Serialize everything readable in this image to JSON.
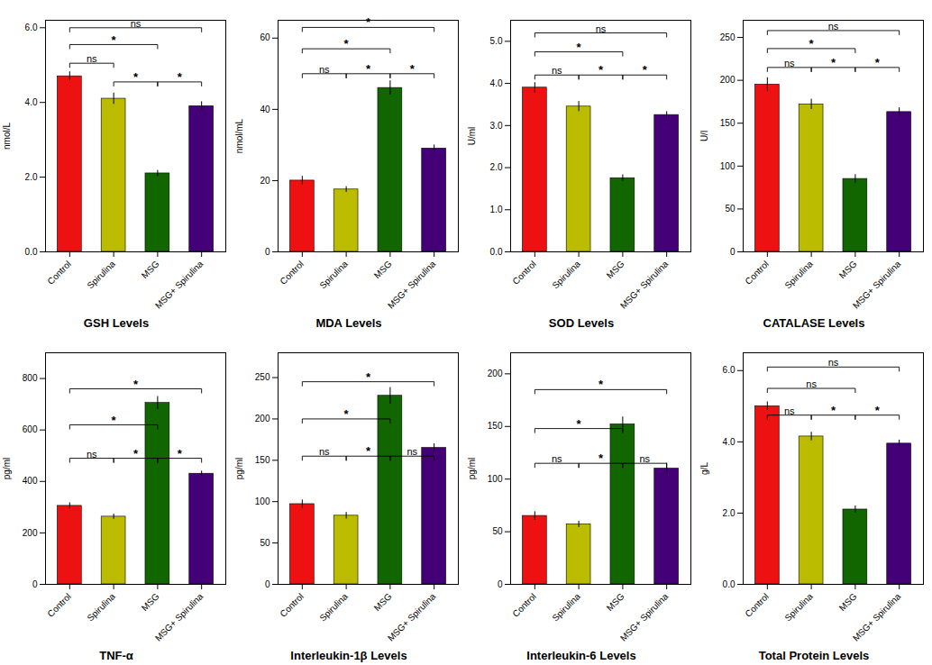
{
  "chart_data": [
    {
      "type": "bar",
      "xlabel": "GSH Levels",
      "ylabel": "nmol/L",
      "categories": [
        "Control",
        "Spirulina",
        "MSG",
        "MSG+ Spirulina"
      ],
      "values": [
        4.7,
        4.1,
        2.1,
        3.9
      ],
      "errors": [
        0.12,
        0.15,
        0.08,
        0.12
      ],
      "colors": [
        "#ee1111",
        "#bbbb00",
        "#116600",
        "#440077"
      ],
      "ylim": [
        0,
        6.2
      ],
      "yticks": [
        0,
        2,
        4,
        6
      ],
      "annotations": [
        {
          "text": "ns",
          "x1": "Control",
          "x2": "Spirulina",
          "y": 5.05
        },
        {
          "text": "*",
          "x1": "Spirulina",
          "x2": "MSG",
          "y": 4.55
        },
        {
          "text": "*",
          "x1": "MSG",
          "x2": "MSG+ Spirulina",
          "y": 4.55
        },
        {
          "text": "*",
          "x1": "Control",
          "x2": "MSG",
          "y": 5.55
        },
        {
          "text": "ns",
          "x1": "Control",
          "x2": "MSG+ Spirulina",
          "y": 6.0
        }
      ]
    },
    {
      "type": "bar",
      "xlabel": "MDA Levels",
      "ylabel": "nmol/mL",
      "categories": [
        "Control",
        "Spirulina",
        "MSG",
        "MSG+ Spirulina"
      ],
      "values": [
        20,
        17.5,
        46,
        29
      ],
      "errors": [
        1.2,
        0.8,
        2.0,
        1.0
      ],
      "colors": [
        "#ee1111",
        "#bbbb00",
        "#116600",
        "#440077"
      ],
      "ylim": [
        0,
        65
      ],
      "yticks": [
        0,
        20,
        40,
        60
      ],
      "annotations": [
        {
          "text": "ns",
          "x1": "Control",
          "x2": "Spirulina",
          "y": 50
        },
        {
          "text": "*",
          "x1": "Spirulina",
          "x2": "MSG",
          "y": 50
        },
        {
          "text": "*",
          "x1": "MSG",
          "x2": "MSG+ Spirulina",
          "y": 50
        },
        {
          "text": "*",
          "x1": "Control",
          "x2": "MSG",
          "y": 57
        },
        {
          "text": "*",
          "x1": "Control",
          "x2": "MSG+ Spirulina",
          "y": 63
        }
      ]
    },
    {
      "type": "bar",
      "xlabel": "SOD Levels",
      "ylabel": "U/ml",
      "categories": [
        "Control",
        "Spirulina",
        "MSG",
        "MSG+ Spirulina"
      ],
      "values": [
        3.9,
        3.45,
        1.75,
        3.25
      ],
      "errors": [
        0.12,
        0.12,
        0.08,
        0.08
      ],
      "colors": [
        "#ee1111",
        "#bbbb00",
        "#116600",
        "#440077"
      ],
      "ylim": [
        0,
        5.5
      ],
      "yticks": [
        0,
        1,
        2,
        3,
        4,
        5
      ],
      "annotations": [
        {
          "text": "ns",
          "x1": "Control",
          "x2": "Spirulina",
          "y": 4.2
        },
        {
          "text": "*",
          "x1": "Spirulina",
          "x2": "MSG",
          "y": 4.2
        },
        {
          "text": "*",
          "x1": "MSG",
          "x2": "MSG+ Spirulina",
          "y": 4.2
        },
        {
          "text": "*",
          "x1": "Control",
          "x2": "MSG",
          "y": 4.75
        },
        {
          "text": "ns",
          "x1": "Control",
          "x2": "MSG+ Spirulina",
          "y": 5.2
        }
      ]
    },
    {
      "type": "bar",
      "xlabel": "CATALASE Levels",
      "ylabel": "U/l",
      "categories": [
        "Control",
        "Spirulina",
        "MSG",
        "MSG+ Spirulina"
      ],
      "values": [
        195,
        172,
        85,
        163
      ],
      "errors": [
        8,
        6,
        5,
        5
      ],
      "colors": [
        "#ee1111",
        "#bbbb00",
        "#116600",
        "#440077"
      ],
      "ylim": [
        0,
        270
      ],
      "yticks": [
        0,
        50,
        100,
        150,
        200,
        250
      ],
      "annotations": [
        {
          "text": "ns",
          "x1": "Control",
          "x2": "Spirulina",
          "y": 215
        },
        {
          "text": "*",
          "x1": "Spirulina",
          "x2": "MSG",
          "y": 215
        },
        {
          "text": "*",
          "x1": "MSG",
          "x2": "MSG+ Spirulina",
          "y": 215
        },
        {
          "text": "*",
          "x1": "Control",
          "x2": "MSG",
          "y": 237
        },
        {
          "text": "ns",
          "x1": "Control",
          "x2": "MSG+ Spirulina",
          "y": 258
        }
      ]
    },
    {
      "type": "bar",
      "xlabel": "TNF-α",
      "ylabel": "pg/ml",
      "categories": [
        "Control",
        "Spirulina",
        "MSG",
        "MSG+ Spirulina"
      ],
      "values": [
        305,
        263,
        705,
        430
      ],
      "errors": [
        12,
        10,
        25,
        10
      ],
      "colors": [
        "#ee1111",
        "#bbbb00",
        "#116600",
        "#440077"
      ],
      "ylim": [
        0,
        900
      ],
      "yticks": [
        0,
        200,
        400,
        600,
        800
      ],
      "annotations": [
        {
          "text": "ns",
          "x1": "Control",
          "x2": "Spirulina",
          "y": 490
        },
        {
          "text": "*",
          "x1": "Spirulina",
          "x2": "MSG",
          "y": 490
        },
        {
          "text": "*",
          "x1": "MSG",
          "x2": "MSG+ Spirulina",
          "y": 490
        },
        {
          "text": "*",
          "x1": "Control",
          "x2": "MSG",
          "y": 620
        },
        {
          "text": "*",
          "x1": "Control",
          "x2": "MSG+ Spirulina",
          "y": 760
        }
      ]
    },
    {
      "type": "bar",
      "xlabel": "Interleukin-1β Levels",
      "ylabel": "pg/ml",
      "categories": [
        "Control",
        "Spirulina",
        "MSG",
        "MSG+ Spirulina"
      ],
      "values": [
        97,
        83,
        228,
        165
      ],
      "errors": [
        5,
        4,
        10,
        5
      ],
      "colors": [
        "#ee1111",
        "#bbbb00",
        "#116600",
        "#440077"
      ],
      "ylim": [
        0,
        280
      ],
      "yticks": [
        0,
        50,
        100,
        150,
        200,
        250
      ],
      "annotations": [
        {
          "text": "ns",
          "x1": "Control",
          "x2": "Spirulina",
          "y": 155
        },
        {
          "text": "*",
          "x1": "Spirulina",
          "x2": "MSG",
          "y": 155
        },
        {
          "text": "ns",
          "x1": "MSG",
          "x2": "MSG+ Spirulina",
          "y": 155
        },
        {
          "text": "*",
          "x1": "Control",
          "x2": "MSG",
          "y": 200
        },
        {
          "text": "*",
          "x1": "Control",
          "x2": "MSG+ Spirulina",
          "y": 245
        }
      ]
    },
    {
      "type": "bar",
      "xlabel": "Interleukin-6 Levels",
      "ylabel": "pg/ml",
      "categories": [
        "Control",
        "Spirulina",
        "MSG",
        "MSG+ Spirulina"
      ],
      "values": [
        65,
        57,
        152,
        110
      ],
      "errors": [
        4,
        3,
        7,
        5
      ],
      "colors": [
        "#ee1111",
        "#bbbb00",
        "#116600",
        "#440077"
      ],
      "ylim": [
        0,
        220
      ],
      "yticks": [
        0,
        50,
        100,
        150,
        200
      ],
      "annotations": [
        {
          "text": "ns",
          "x1": "Control",
          "x2": "Spirulina",
          "y": 115
        },
        {
          "text": "*",
          "x1": "Spirulina",
          "x2": "MSG",
          "y": 115
        },
        {
          "text": "ns",
          "x1": "MSG",
          "x2": "MSG+ Spirulina",
          "y": 115
        },
        {
          "text": "*",
          "x1": "Control",
          "x2": "MSG",
          "y": 148
        },
        {
          "text": "*",
          "x1": "Control",
          "x2": "MSG+ Spirulina",
          "y": 185
        }
      ]
    },
    {
      "type": "bar",
      "xlabel": "Total Protein Levels",
      "ylabel": "g/L",
      "categories": [
        "Control",
        "Spirulina",
        "MSG",
        "MSG+ Spirulina"
      ],
      "values": [
        5.0,
        4.15,
        2.1,
        3.95
      ],
      "errors": [
        0.12,
        0.12,
        0.1,
        0.1
      ],
      "colors": [
        "#ee1111",
        "#bbbb00",
        "#116600",
        "#440077"
      ],
      "ylim": [
        0,
        6.5
      ],
      "yticks": [
        0,
        2,
        4,
        6
      ],
      "annotations": [
        {
          "text": "ns",
          "x1": "Control",
          "x2": "Spirulina",
          "y": 4.75
        },
        {
          "text": "*",
          "x1": "Spirulina",
          "x2": "MSG",
          "y": 4.75
        },
        {
          "text": "*",
          "x1": "MSG",
          "x2": "MSG+ Spirulina",
          "y": 4.75
        },
        {
          "text": "ns",
          "x1": "Control",
          "x2": "MSG",
          "y": 5.5
        },
        {
          "text": "ns",
          "x1": "Control",
          "x2": "MSG+ Spirulina",
          "y": 6.1
        }
      ]
    }
  ]
}
